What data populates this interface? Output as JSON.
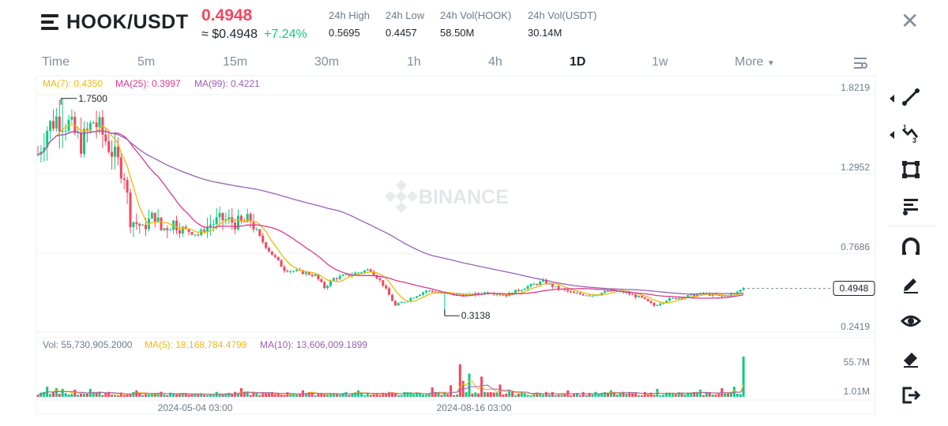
{
  "header": {
    "pair": "HOOK/USDT",
    "last_price": "0.4948",
    "approx_label": "≈ $0.4948",
    "change_pct": "+7.24%",
    "stats": [
      {
        "label": "24h High",
        "value": "0.5695"
      },
      {
        "label": "24h Low",
        "value": "0.4457"
      },
      {
        "label": "24h Vol(HOOK)",
        "value": "58.50M"
      },
      {
        "label": "24h Vol(USDT)",
        "value": "30.14M"
      }
    ]
  },
  "timeframes": [
    "Time",
    "5m",
    "15m",
    "30m",
    "1h",
    "4h",
    "1D",
    "1w",
    "More"
  ],
  "active_timeframe": "1D",
  "toolbar": [
    "trend-line",
    "fib",
    "rectangle",
    "text",
    "magnet",
    "pencil",
    "eye",
    "eraser",
    "exit"
  ],
  "colors": {
    "up": "#0ecb81",
    "down": "#f6465d",
    "ma7": "#f0b90b",
    "ma25": "#d63b8f",
    "ma99": "#9c5fb5",
    "grid": "#eef0f3"
  },
  "chart_data": {
    "type": "candlestick",
    "watermark": "BINANCE",
    "legend": {
      "ma7": "MA(7): 0.4350",
      "ma25": "MA(25): 0.3997",
      "ma99": "MA(99): 0.4221"
    },
    "price_ticks": [
      1.8219,
      1.2952,
      0.7686,
      0.2419
    ],
    "price_tick_labels": [
      "1.8219",
      "1.2952",
      "0.7686",
      "0.2419"
    ],
    "ylim": [
      0.21,
      1.91
    ],
    "current_price": 0.4948,
    "current_price_label": "0.4948",
    "high_marker": {
      "value": 1.75,
      "label": "1.7500"
    },
    "low_marker": {
      "value": 0.3138,
      "label": "0.3138"
    },
    "x_tick_labels": [
      "2024-05-04 03:00",
      "2024-08-16 03:00"
    ],
    "trend_anchors": [
      [
        0,
        1.38
      ],
      [
        3,
        1.55
      ],
      [
        6,
        1.62
      ],
      [
        10,
        1.58
      ],
      [
        14,
        1.45
      ],
      [
        18,
        1.6
      ],
      [
        20,
        1.55
      ],
      [
        24,
        1.4
      ],
      [
        28,
        1.25
      ],
      [
        30,
        0.95
      ],
      [
        34,
        0.9
      ],
      [
        38,
        0.98
      ],
      [
        40,
        0.88
      ],
      [
        44,
        0.93
      ],
      [
        48,
        0.88
      ],
      [
        52,
        0.85
      ],
      [
        56,
        0.92
      ],
      [
        60,
        0.95
      ],
      [
        66,
        0.92
      ],
      [
        69,
        0.95
      ],
      [
        72,
        0.83
      ],
      [
        76,
        0.72
      ],
      [
        80,
        0.62
      ],
      [
        86,
        0.6
      ],
      [
        90,
        0.58
      ],
      [
        93,
        0.5
      ],
      [
        96,
        0.56
      ],
      [
        100,
        0.58
      ],
      [
        104,
        0.6
      ],
      [
        108,
        0.62
      ],
      [
        112,
        0.52
      ],
      [
        116,
        0.38
      ],
      [
        120,
        0.42
      ],
      [
        126,
        0.48
      ],
      [
        132,
        0.46
      ],
      [
        140,
        0.45
      ],
      [
        146,
        0.47
      ],
      [
        152,
        0.45
      ],
      [
        158,
        0.5
      ],
      [
        164,
        0.54
      ],
      [
        168,
        0.5
      ],
      [
        174,
        0.46
      ],
      [
        180,
        0.45
      ],
      [
        186,
        0.48
      ],
      [
        190,
        0.47
      ],
      [
        196,
        0.43
      ],
      [
        200,
        0.38
      ],
      [
        204,
        0.42
      ],
      [
        210,
        0.44
      ],
      [
        216,
        0.46
      ],
      [
        222,
        0.44
      ],
      [
        226,
        0.46
      ],
      [
        229,
        0.4948
      ]
    ],
    "volume": {
      "legend": {
        "vol": "Vol: 55,730,905.2000",
        "ma5": "MA(5): 18,168,784.4799",
        "ma10": "MA(10): 13,606,009.1899"
      },
      "ticks": [
        "55.7M",
        "1.01M"
      ],
      "max": 55730905,
      "spikes": [
        [
          3,
          14
        ],
        [
          6,
          12
        ],
        [
          8,
          11
        ],
        [
          12,
          10
        ],
        [
          17,
          11
        ],
        [
          32,
          9
        ],
        [
          40,
          7
        ],
        [
          66,
          12
        ],
        [
          86,
          9
        ],
        [
          104,
          9
        ],
        [
          128,
          13
        ],
        [
          134,
          16
        ],
        [
          137,
          45
        ],
        [
          138,
          22
        ],
        [
          140,
          32
        ],
        [
          144,
          28
        ],
        [
          150,
          17
        ],
        [
          153,
          10
        ],
        [
          172,
          9
        ],
        [
          186,
          9
        ],
        [
          201,
          11
        ],
        [
          215,
          10
        ],
        [
          222,
          12
        ],
        [
          226,
          14
        ],
        [
          229,
          55.7
        ]
      ]
    }
  }
}
